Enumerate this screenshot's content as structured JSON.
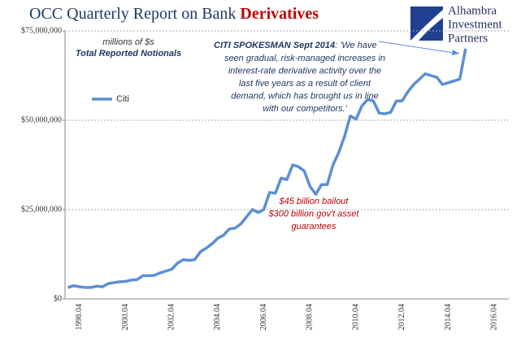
{
  "chart_data": {
    "type": "line",
    "title": "OCC Quarterly Report on Bank",
    "title_emphasis": "Derivatives",
    "subtitle_units": "millions of $s",
    "subtitle": "Total Reported Notionals",
    "logo": [
      "Alhambra",
      "Investment",
      "Partners"
    ],
    "quote_lead": "CITI SPOKESMAN Sept 2014",
    "quote_lines": [
      ": 'We have",
      "seen gradual, risk-managed increases in",
      "interest-rate derivative activity over the",
      "last five years as a result of client",
      "demand, which has brought us in line",
      "with our competitors.'"
    ],
    "bailout_lines": [
      "$45 billion bailout",
      "$300 billion gov't asset",
      "guarantees"
    ],
    "categories": [
      null,
      null,
      "1998.04",
      null,
      null,
      null,
      null,
      null,
      null,
      null,
      "2000.04",
      null,
      null,
      null,
      null,
      null,
      null,
      null,
      "2002.04",
      null,
      null,
      null,
      null,
      null,
      null,
      null,
      "2004.04",
      null,
      null,
      null,
      null,
      null,
      null,
      null,
      "2006.04",
      null,
      null,
      null,
      null,
      null,
      null,
      null,
      "2008.04",
      null,
      null,
      null,
      null,
      null,
      null,
      null,
      "2010.04",
      null,
      null,
      null,
      null,
      null,
      null,
      null,
      "2012.04",
      null,
      null,
      null,
      null,
      null,
      null,
      null,
      "2014.04",
      null,
      null,
      null,
      null,
      null,
      null,
      null,
      "2016.04",
      null,
      null
    ],
    "series": [
      {
        "name": "Citi",
        "color": "#5b8fd4",
        "values": [
          3200000,
          3700000,
          3400000,
          3200000,
          3200000,
          3600000,
          3400000,
          4300000,
          4600000,
          4800000,
          4900000,
          5300000,
          5400000,
          6500000,
          6500000,
          6600000,
          7300000,
          7800000,
          8300000,
          10000000,
          11000000,
          10800000,
          11000000,
          13200000,
          14200000,
          15400000,
          17000000,
          17800000,
          19600000,
          19800000,
          21000000,
          23000000,
          25000000,
          24200000,
          25000000,
          29800000,
          29600000,
          33800000,
          33400000,
          37500000,
          37000000,
          35800000,
          31500000,
          29300000,
          32000000,
          32000000,
          37500000,
          41000000,
          45500000,
          51200000,
          50300000,
          54000000,
          55800000,
          55400000,
          52000000,
          51800000,
          52200000,
          55400000,
          55400000,
          58000000,
          60000000,
          61500000,
          63000000,
          62500000,
          62000000,
          60000000,
          60500000,
          61000000,
          61500000,
          70000000,
          null,
          null,
          null,
          null,
          null,
          null,
          null
        ]
      }
    ],
    "ylim": [
      0,
      75000000
    ],
    "yticks": [
      {
        "value": 0,
        "label": "$0"
      },
      {
        "value": 25000000,
        "label": "$25,000,000"
      },
      {
        "value": 50000000,
        "label": "$50,000,000"
      },
      {
        "value": 75000000,
        "label": "$75,000,000"
      }
    ],
    "grid": true
  }
}
